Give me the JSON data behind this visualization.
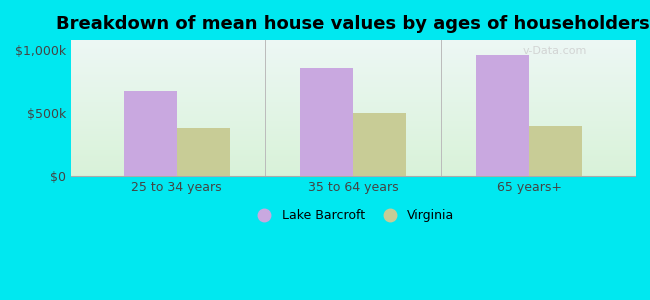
{
  "title": "Breakdown of mean house values by ages of householders",
  "categories": [
    "25 to 34 years",
    "35 to 64 years",
    "65 years+"
  ],
  "lake_barcroft": [
    680000,
    860000,
    960000
  ],
  "virginia": [
    380000,
    500000,
    400000
  ],
  "lake_barcroft_color": "#c9a8e0",
  "virginia_color": "#c8cc96",
  "background_outer": "#00e8f0",
  "background_inner_top": "#e8f4f8",
  "background_inner_bottom": "#d8f0d8",
  "yticks": [
    0,
    500000,
    1000000
  ],
  "ytick_labels": [
    "$0",
    "$500k",
    "$1,000k"
  ],
  "ylim": [
    0,
    1080000
  ],
  "bar_width": 0.3,
  "legend_lake": "Lake Barcroft",
  "legend_virginia": "Virginia",
  "title_fontsize": 13,
  "tick_fontsize": 9,
  "legend_fontsize": 9,
  "watermark": "v-Data.com",
  "watermark_color": "#cccccc"
}
